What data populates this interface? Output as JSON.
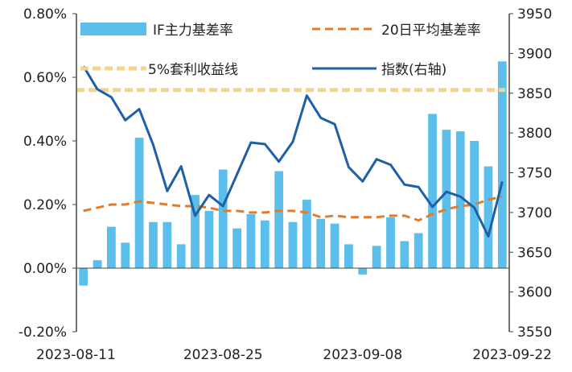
{
  "chart_data": {
    "type": "bar",
    "left_axis": {
      "ticks": [
        "-0.20%",
        "0.00%",
        "0.20%",
        "0.40%",
        "0.60%",
        "0.80%"
      ],
      "tick_values": [
        -0.2,
        0.0,
        0.2,
        0.4,
        0.6,
        0.8
      ],
      "ylim": [
        -0.2,
        0.8
      ]
    },
    "right_axis": {
      "ticks": [
        "3550",
        "3600",
        "3650",
        "3700",
        "3750",
        "3800",
        "3850",
        "3900",
        "3950"
      ],
      "tick_values": [
        3550,
        3600,
        3650,
        3700,
        3750,
        3800,
        3850,
        3900,
        3950
      ],
      "ylim": [
        3550,
        3950
      ]
    },
    "x_tick_labels": [
      {
        "label": "2023-08-11",
        "index": 0
      },
      {
        "label": "2023-08-25",
        "index": 10
      },
      {
        "label": "2023-09-08",
        "index": 20
      },
      {
        "label": "2023-09-22",
        "index": 30
      }
    ],
    "dates": [
      "2023-08-11",
      "2023-08-14",
      "2023-08-15",
      "2023-08-16",
      "2023-08-17",
      "2023-08-18",
      "2023-08-21",
      "2023-08-22",
      "2023-08-23",
      "2023-08-24",
      "2023-08-25",
      "2023-08-28",
      "2023-08-29",
      "2023-08-30",
      "2023-08-31",
      "2023-09-01",
      "2023-09-04",
      "2023-09-05",
      "2023-09-06",
      "2023-09-07",
      "2023-09-08",
      "2023-09-11",
      "2023-09-12",
      "2023-09-13",
      "2023-09-14",
      "2023-09-15",
      "2023-09-18",
      "2023-09-19",
      "2023-09-20",
      "2023-09-21",
      "2023-09-22"
    ],
    "series": [
      {
        "name": "IF主力基差率",
        "kind": "bar",
        "axis": "left",
        "color": "#5cbeeb",
        "values": [
          -0.055,
          0.025,
          0.13,
          0.08,
          0.41,
          0.145,
          0.145,
          0.075,
          0.23,
          0.18,
          0.31,
          0.125,
          0.17,
          0.15,
          0.305,
          0.145,
          0.215,
          0.155,
          0.14,
          0.075,
          -0.02,
          0.07,
          0.16,
          0.085,
          0.11,
          0.485,
          0.435,
          0.43,
          0.4,
          0.32,
          0.65
        ]
      },
      {
        "name": "20日平均基差率",
        "kind": "line-dashed",
        "axis": "left",
        "color": "#e07d2c",
        "values": [
          0.18,
          0.19,
          0.2,
          0.2,
          0.21,
          0.205,
          0.2,
          0.195,
          0.195,
          0.19,
          0.18,
          0.18,
          0.175,
          0.175,
          0.18,
          0.18,
          0.175,
          0.16,
          0.165,
          0.16,
          0.16,
          0.16,
          0.165,
          0.165,
          0.15,
          0.17,
          0.185,
          0.195,
          0.2,
          0.215,
          0.225
        ]
      },
      {
        "name": "5%套利收益线",
        "kind": "line-dashed",
        "axis": "left",
        "color": "#f2d58a",
        "values": [
          0.56,
          0.56,
          0.56,
          0.56,
          0.56,
          0.56,
          0.56,
          0.56,
          0.56,
          0.56,
          0.56,
          0.56,
          0.56,
          0.56,
          0.56,
          0.56,
          0.56,
          0.56,
          0.56,
          0.56,
          0.56,
          0.56,
          0.56,
          0.56,
          0.56,
          0.56,
          0.56,
          0.56,
          0.56,
          0.56,
          0.56
        ]
      },
      {
        "name": "指数(右轴)",
        "kind": "line",
        "axis": "right",
        "color": "#1f5fa8",
        "values": [
          3884,
          3855,
          3845,
          3816,
          3830,
          3785,
          3727,
          3758,
          3696,
          3722,
          3708,
          3748,
          3788,
          3786,
          3764,
          3789,
          3847,
          3819,
          3811,
          3757,
          3739,
          3767,
          3760,
          3735,
          3732,
          3707,
          3726,
          3720,
          3706,
          3670,
          3739
        ]
      }
    ],
    "legend": [
      "IF主力基差率",
      "20日平均基差率",
      "5%套利收益线",
      "指数(右轴)"
    ],
    "grid": false,
    "legend_position": "top"
  }
}
